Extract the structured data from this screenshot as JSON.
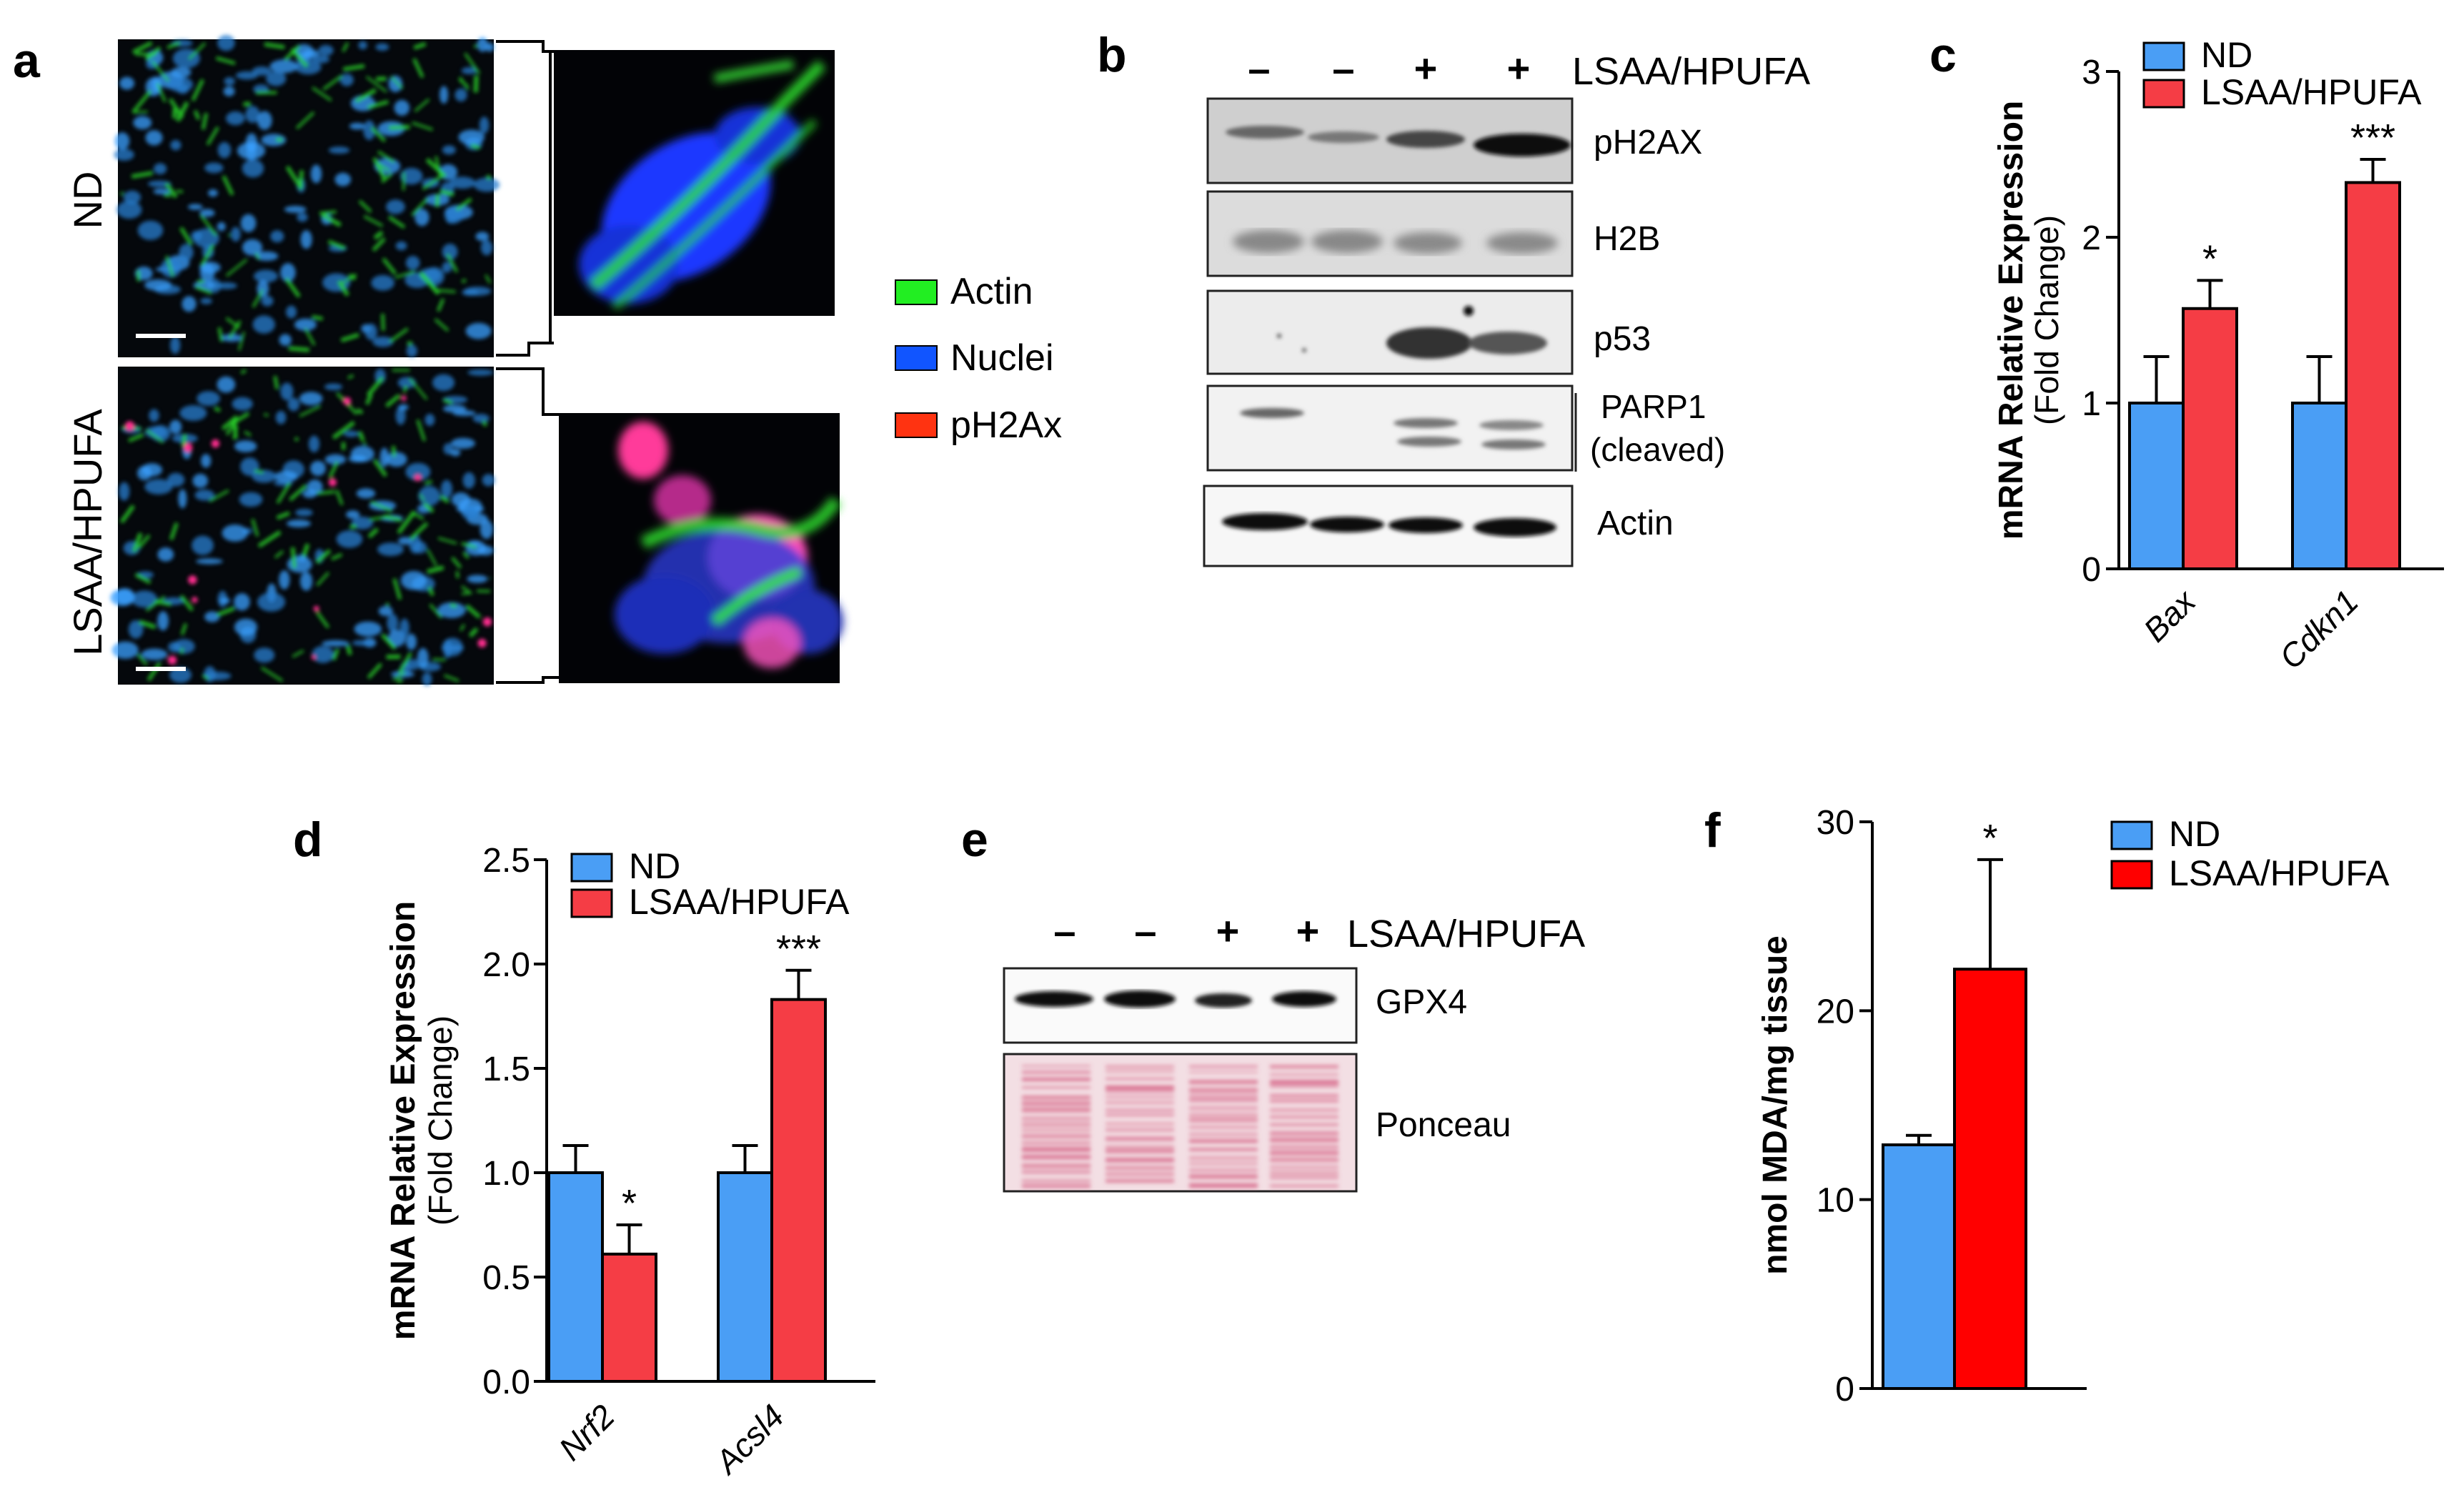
{
  "panels": {
    "a": {
      "letter": "a",
      "rows": [
        "ND",
        "LSAA/HPUFA"
      ],
      "legend": [
        {
          "label": "Actin",
          "color": "#22ee22"
        },
        {
          "label": "Nuclei",
          "color": "#1155ff"
        },
        {
          "label": "pH2Ax",
          "color": "#ff3311"
        }
      ]
    },
    "b": {
      "letter": "b",
      "lane_signs": [
        "–",
        "–",
        "+",
        "+"
      ],
      "treatment": "LSAA/HPUFA",
      "blots": [
        "pH2AX",
        "H2B",
        "p53",
        "PARP1",
        "(cleaved)",
        "Actin"
      ]
    },
    "e": {
      "letter": "e",
      "lane_signs": [
        "–",
        "–",
        "+",
        "+"
      ],
      "treatment": "LSAA/HPUFA",
      "blots": [
        "GPX4",
        "Ponceau"
      ]
    }
  },
  "chart_data": [
    {
      "panel": "c",
      "type": "bar",
      "ylabel": "mRNA Relative Expression",
      "ylabel2": "(Fold Change)",
      "ylim": [
        0,
        3
      ],
      "yticks": [
        "0",
        "1",
        "2",
        "3"
      ],
      "categories": [
        "Bax",
        "Cdkn1"
      ],
      "series": [
        {
          "name": "ND",
          "color": "#4a9ef5",
          "values": [
            1.0,
            1.0
          ],
          "errors": [
            0.28,
            0.28
          ]
        },
        {
          "name": "LSAA/HPUFA",
          "color": "#f53d45",
          "values": [
            1.57,
            2.33
          ],
          "errors": [
            0.17,
            0.14
          ]
        }
      ],
      "significance": [
        "*",
        "***"
      ],
      "legend": "top-right"
    },
    {
      "panel": "d",
      "type": "bar",
      "ylabel": "mRNA Relative Expression",
      "ylabel2": "(Fold Change)",
      "ylim": [
        0,
        2.5
      ],
      "yticks": [
        "0.0",
        "0.5",
        "1.0",
        "1.5",
        "2.0",
        "2.5"
      ],
      "categories": [
        "Nrf2",
        "Acsl4"
      ],
      "series": [
        {
          "name": "ND",
          "color": "#4a9ef5",
          "values": [
            1.0,
            1.0
          ],
          "errors": [
            0.13,
            0.13
          ]
        },
        {
          "name": "LSAA/HPUFA",
          "color": "#f53d45",
          "values": [
            0.61,
            1.83
          ],
          "errors": [
            0.14,
            0.14
          ]
        }
      ],
      "significance": [
        "*",
        "***"
      ],
      "legend": "top-right"
    },
    {
      "panel": "f",
      "type": "bar",
      "ylabel": "nmol MDA/mg tissue",
      "ylim": [
        0,
        30
      ],
      "yticks": [
        "0",
        "10",
        "20",
        "30"
      ],
      "categories": [
        ""
      ],
      "series": [
        {
          "name": "ND",
          "color": "#4a9ef5",
          "values": [
            12.9
          ],
          "errors": [
            0.5
          ]
        },
        {
          "name": "LSAA/HPUFA",
          "color": "#ff0000",
          "values": [
            22.2
          ],
          "errors": [
            5.8
          ]
        }
      ],
      "significance": [
        "*"
      ],
      "legend": "top-right"
    }
  ]
}
